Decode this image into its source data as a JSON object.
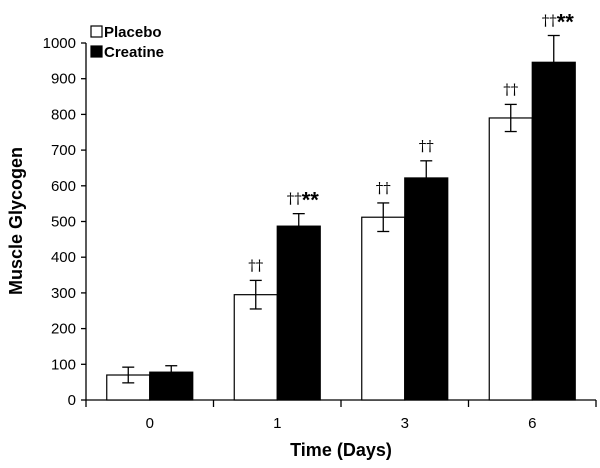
{
  "chart_data": {
    "type": "bar",
    "xlabel": "Time (Days)",
    "ylabel": "Muscle Glycogen",
    "ylim": [
      0,
      1000
    ],
    "yticks": [
      0,
      100,
      200,
      300,
      400,
      500,
      600,
      700,
      800,
      900,
      1000
    ],
    "categories": [
      "0",
      "1",
      "3",
      "6"
    ],
    "legend_position": "top-left",
    "grid": false,
    "series": [
      {
        "name": "Placebo",
        "fill": "#ffffff",
        "values": [
          70,
          295,
          512,
          790
        ],
        "errors": [
          22,
          40,
          40,
          38
        ],
        "annotations": [
          "",
          "††",
          "††",
          "††"
        ]
      },
      {
        "name": "Creatine",
        "fill": "#000000",
        "values": [
          78,
          487,
          622,
          946
        ],
        "errors": [
          18,
          35,
          48,
          75
        ],
        "annotations": [
          "",
          "††**",
          "††",
          "††**"
        ]
      }
    ]
  }
}
